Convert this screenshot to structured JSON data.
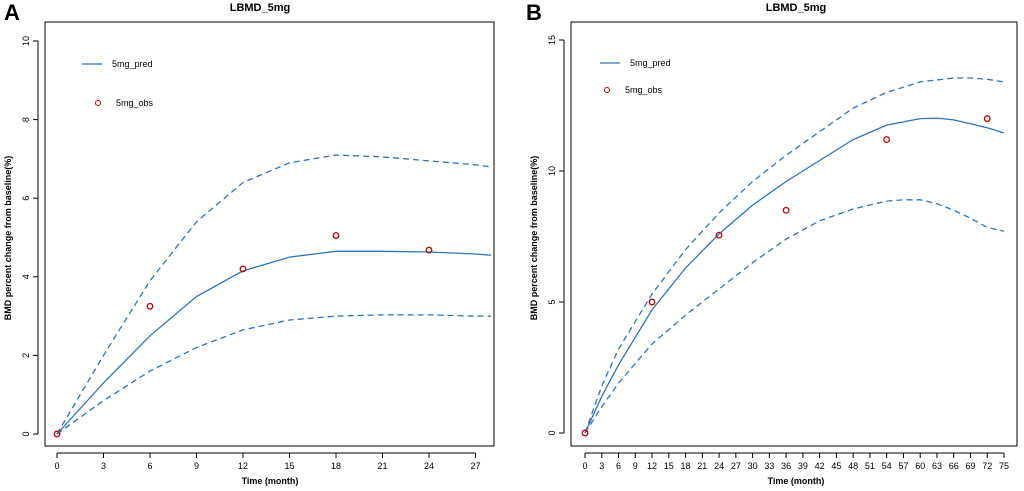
{
  "colors": {
    "line": "#2e75b6",
    "obs": "#c00000",
    "axis": "#000000"
  },
  "chart_data": [
    {
      "panel": "A",
      "type": "line",
      "title": "LBMD_5mg",
      "xlabel": "Time (month)",
      "ylabel": "BMD percent change from baseline(%)",
      "xlim": [
        0,
        28
      ],
      "ylim": [
        0,
        10
      ],
      "xticks": [
        0,
        3,
        6,
        9,
        12,
        15,
        18,
        21,
        24,
        27
      ],
      "yticks": [
        0,
        2,
        4,
        6,
        8,
        10
      ],
      "legend": {
        "pred_label": "5mg_pred",
        "obs_label": "5mg_obs",
        "position": "top-left"
      },
      "series": [
        {
          "name": "5mg_pred",
          "style": "solid",
          "x": [
            0,
            3,
            6,
            9,
            12,
            15,
            18,
            21,
            24,
            27,
            28
          ],
          "y": [
            0,
            1.3,
            2.5,
            3.5,
            4.15,
            4.5,
            4.65,
            4.65,
            4.63,
            4.58,
            4.55
          ]
        },
        {
          "name": "upper",
          "style": "dashed",
          "x": [
            0,
            3,
            6,
            9,
            12,
            15,
            18,
            21,
            24,
            27,
            28
          ],
          "y": [
            0,
            2.0,
            3.9,
            5.4,
            6.4,
            6.9,
            7.1,
            7.05,
            6.95,
            6.85,
            6.8
          ]
        },
        {
          "name": "lower",
          "style": "dashed",
          "x": [
            0,
            3,
            6,
            9,
            12,
            15,
            18,
            21,
            24,
            27,
            28
          ],
          "y": [
            0,
            0.85,
            1.6,
            2.2,
            2.65,
            2.9,
            3.0,
            3.03,
            3.03,
            3.0,
            3.0
          ]
        }
      ],
      "observations": {
        "name": "5mg_obs",
        "x": [
          0,
          6,
          12,
          18,
          24
        ],
        "y": [
          0,
          3.25,
          4.2,
          5.05,
          4.68
        ]
      }
    },
    {
      "panel": "B",
      "type": "line",
      "title": "LBMD_5mg",
      "xlabel": "Time (month)",
      "ylabel": "BMD percent change from baseline(%)",
      "xlim": [
        0,
        75
      ],
      "ylim": [
        0,
        15
      ],
      "xticks": [
        0,
        3,
        6,
        9,
        12,
        15,
        18,
        21,
        24,
        27,
        30,
        33,
        36,
        39,
        42,
        45,
        48,
        51,
        54,
        57,
        60,
        63,
        66,
        69,
        72,
        75
      ],
      "yticks": [
        0,
        5,
        10,
        15
      ],
      "legend": {
        "pred_label": "5mg_pred",
        "obs_label": "5mg_obs",
        "position": "top-left"
      },
      "series": [
        {
          "name": "5mg_pred",
          "style": "solid",
          "x": [
            0,
            3,
            6,
            12,
            18,
            24,
            30,
            36,
            42,
            48,
            54,
            60,
            63,
            66,
            69,
            72,
            75
          ],
          "y": [
            0,
            1.4,
            2.6,
            4.7,
            6.3,
            7.6,
            8.7,
            9.6,
            10.4,
            11.2,
            11.75,
            12.0,
            12.02,
            11.95,
            11.8,
            11.65,
            11.45
          ]
        },
        {
          "name": "upper",
          "style": "dashed",
          "x": [
            0,
            3,
            6,
            12,
            18,
            24,
            30,
            36,
            42,
            48,
            54,
            60,
            66,
            69,
            72,
            75
          ],
          "y": [
            0,
            1.8,
            3.2,
            5.3,
            7.0,
            8.4,
            9.6,
            10.6,
            11.5,
            12.4,
            13.0,
            13.4,
            13.55,
            13.55,
            13.5,
            13.4
          ]
        },
        {
          "name": "lower",
          "style": "dashed",
          "x": [
            0,
            3,
            6,
            12,
            18,
            24,
            30,
            36,
            42,
            48,
            54,
            57,
            60,
            63,
            66,
            69,
            72,
            75
          ],
          "y": [
            0,
            1.0,
            1.9,
            3.4,
            4.5,
            5.5,
            6.5,
            7.4,
            8.1,
            8.55,
            8.85,
            8.9,
            8.9,
            8.75,
            8.5,
            8.2,
            7.85,
            7.7
          ]
        }
      ],
      "observations": {
        "name": "5mg_obs",
        "x": [
          0,
          12,
          24,
          36,
          54,
          72
        ],
        "y": [
          0,
          5.0,
          7.55,
          8.5,
          11.2,
          12.0
        ]
      }
    }
  ],
  "panels": [
    {
      "letter": "A"
    },
    {
      "letter": "B"
    }
  ]
}
